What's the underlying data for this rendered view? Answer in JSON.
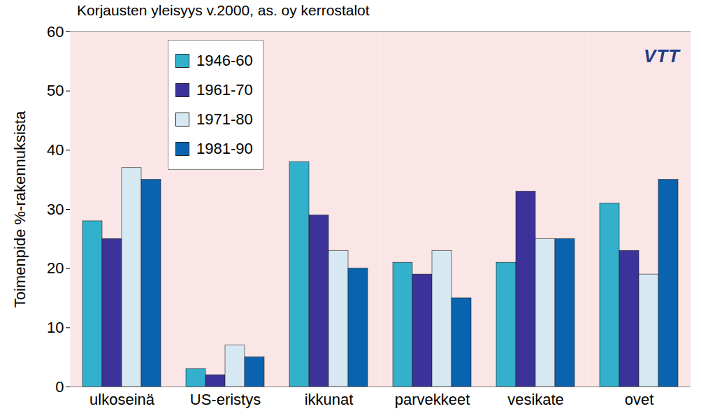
{
  "chart_data": {
    "type": "bar",
    "title": "Korjausten yleisyys v.2000, as. oy kerrostalot",
    "ylabel": "Toimenpide %-rakennuksista",
    "categories": [
      "ulkoseinä",
      "US-eristys",
      "ikkunat",
      "parvekkeet",
      "vesikate",
      "ovet"
    ],
    "series": [
      {
        "name": "1946-60",
        "color": "#33b0cc",
        "values": [
          28,
          3,
          38,
          21,
          21,
          31
        ]
      },
      {
        "name": "1961-70",
        "color": "#3b3399",
        "values": [
          25,
          2,
          29,
          19,
          33,
          23
        ]
      },
      {
        "name": "1971-80",
        "color": "#d6e8f2",
        "values": [
          37,
          7,
          23,
          23,
          25,
          19
        ]
      },
      {
        "name": "1981-90",
        "color": "#0a63ae",
        "values": [
          35,
          5,
          20,
          15,
          25,
          35
        ]
      }
    ],
    "ylim": [
      0,
      60
    ],
    "yticks": [
      0,
      10,
      20,
      30,
      40,
      50,
      60
    ],
    "grid": false,
    "legend": "top-left",
    "annotations": [
      "VTT"
    ]
  }
}
